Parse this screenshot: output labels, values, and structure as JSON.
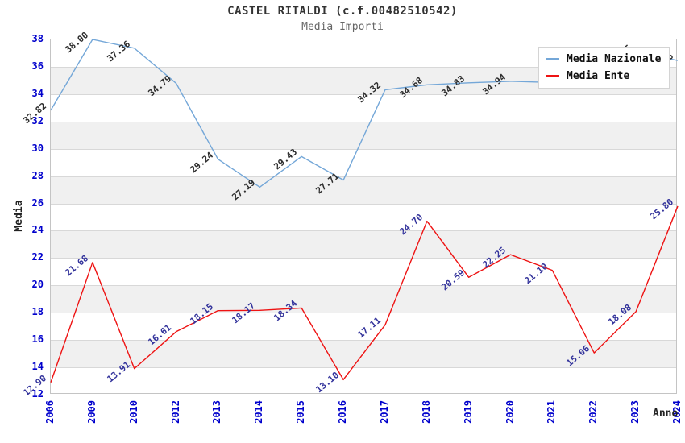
{
  "title": "CASTEL RITALDI (c.f.00482510542)",
  "subtitle": "Media Importi",
  "axes": {
    "y_label": "Media",
    "x_label": "Anno",
    "y_ticks": [
      12,
      14,
      16,
      18,
      20,
      22,
      24,
      26,
      28,
      30,
      32,
      34,
      36,
      38
    ],
    "tick_color": "#0000cc"
  },
  "legend": {
    "position": "top-right",
    "items": [
      {
        "label": "Media Nazionale",
        "color": "#74a7d8"
      },
      {
        "label": "Media Ente",
        "color": "#ee1313"
      }
    ]
  },
  "style_colors": {
    "band_gray": "#f0f0f0",
    "gridline": "#d8d8d8",
    "plot_border": "#c4c4c4"
  },
  "chart_data": {
    "type": "line",
    "x": [
      "2006",
      "2009",
      "2010",
      "2012",
      "2013",
      "2014",
      "2015",
      "2016",
      "2017",
      "2018",
      "2019",
      "2020",
      "2021",
      "2022",
      "2023",
      "2024"
    ],
    "ylim": [
      12,
      38
    ],
    "grid": "horizontal gridlines with alternating gray/white bands every 2 units",
    "series": [
      {
        "name": "Media Nazionale",
        "color": "#74a7d8",
        "label_color": "#2e2e2e",
        "values": [
          32.82,
          38.0,
          37.36,
          34.79,
          29.24,
          27.19,
          29.43,
          27.71,
          34.32,
          34.68,
          34.83,
          34.94,
          34.85,
          34.62,
          37.05,
          36.46
        ],
        "labels": [
          "32.82",
          "38.00",
          "37.36",
          "34.79",
          "29.24",
          "27.19",
          "29.43",
          "27.71",
          "34.32",
          "34.68",
          "34.83",
          "34.94",
          null,
          null,
          "37.05",
          "36.46"
        ]
      },
      {
        "name": "Media Ente",
        "color": "#ee1313",
        "label_color": "#34349c",
        "values": [
          12.9,
          21.68,
          13.91,
          16.61,
          18.15,
          18.17,
          18.34,
          13.1,
          17.11,
          24.7,
          20.59,
          22.25,
          21.1,
          15.06,
          18.08,
          25.8
        ],
        "labels": [
          "12.90",
          "21.68",
          "13.91",
          "16.61",
          "18.15",
          "18.17",
          "18.34",
          "13.10",
          "17.11",
          "24.70",
          "20.59",
          "22.25",
          "21.10",
          "15.06",
          "18.08",
          "25.80"
        ]
      }
    ]
  }
}
